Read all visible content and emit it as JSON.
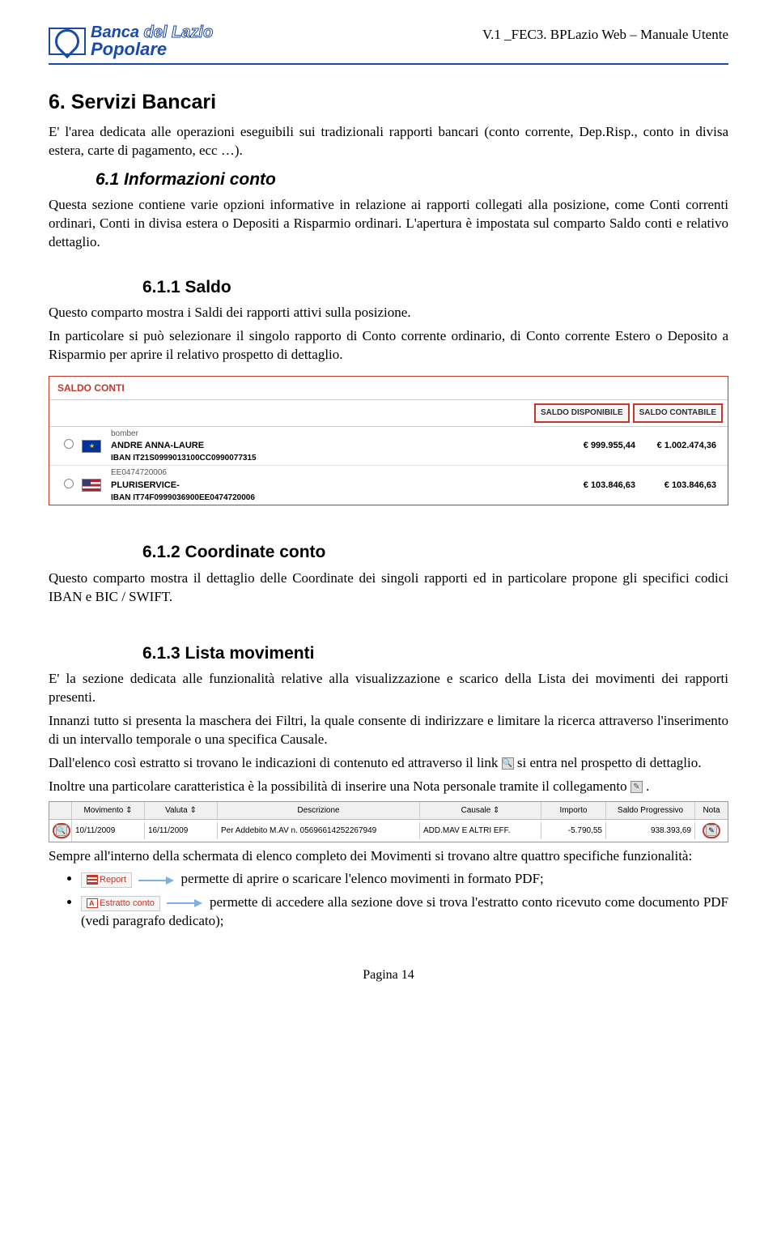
{
  "header": {
    "logo_line1a": "Banca",
    "logo_line1b": "del Lazio",
    "logo_line2": "Popolare",
    "doc_title": "V.1 _FEC3. BPLazio Web – Manuale Utente"
  },
  "h1": "6.   Servizi Bancari",
  "p1": "E' l'area dedicata alle operazioni eseguibili sui tradizionali rapporti bancari (conto corrente, Dep.Risp., conto in divisa estera, carte di pagamento, ecc …).",
  "h2_1": "6.1    Informazioni conto",
  "p2": "Questa sezione contiene varie opzioni informative in relazione ai rapporti collegati alla posizione, come Conti correnti ordinari, Conti in divisa estera o Depositi a Risparmio ordinari. L'apertura è impostata sul comparto Saldo conti e relativo dettaglio.",
  "h3_1": "6.1.1     Saldo",
  "p3": "Questo comparto mostra i Saldi dei rapporti attivi sulla posizione.",
  "p4": "In particolare si può selezionare il singolo rapporto di Conto corrente ordinario, di Conto corrente Estero o Deposito a Risparmio per aprire il relativo prospetto di dettaglio.",
  "saldo": {
    "title": "SALDO CONTI",
    "head_disp": "SALDO DISPONIBILE",
    "head_cont": "SALDO CONTABILE",
    "rows": [
      {
        "flag": "eur",
        "nick": "bomber",
        "name": "ANDRE ANNA-LAURE",
        "iban_label": "IBAN IT21S0999013100CC0990077315",
        "disp": "€ 999.955,44",
        "cont": "€ 1.002.474,36"
      },
      {
        "flag": "usa",
        "nick": "EE0474720006",
        "name": "PLURISERVICE-",
        "iban_label": "IBAN IT74F0999036900EE0474720006",
        "disp": "€ 103.846,63",
        "cont": "€ 103.846,63"
      }
    ]
  },
  "h3_2": "6.1.2     Coordinate conto",
  "p5": "Questo comparto mostra il dettaglio delle Coordinate dei singoli rapporti ed in particolare propone gli specifici codici IBAN e BIC / SWIFT.",
  "h3_3": "6.1.3     Lista movimenti",
  "p6": "E' la sezione dedicata alle funzionalità relative alla visualizzazione e scarico della Lista dei movimenti dei rapporti presenti.",
  "p7": "Innanzi tutto si presenta la maschera dei Filtri, la quale consente di indirizzare e limitare la ricerca attraverso l'inserimento di un intervallo temporale o una specifica Causale.",
  "p8a": "Dall'elenco così estratto si trovano le indicazioni di contenuto ed attraverso il link ",
  "p8b": " si entra nel prospetto di dettaglio.",
  "p9a": "Inoltre una particolare caratteristica è la possibilità di inserire una Nota personale tramite il collegamento ",
  "p9b": ".",
  "mov": {
    "head": {
      "movimento": "Movimento ⇕",
      "valuta": "Valuta ⇕",
      "descr": "Descrizione",
      "causale": "Causale ⇕",
      "importo": "Importo",
      "saldo": "Saldo Progressivo",
      "nota": "Nota"
    },
    "row": {
      "date": "10/11/2009",
      "valuta": "16/11/2009",
      "descr": "Per Addebito M.AV n. 05696614252267949",
      "causale": "ADD.MAV E ALTRI EFF.",
      "importo": "-5.790,55",
      "saldo": "938.393,69"
    }
  },
  "p10": "Sempre all'interno della schermata di elenco completo dei Movimenti si trovano altre quattro specifiche funzionalità:",
  "bullets": {
    "b1_label": "Report",
    "b1_text": "permette di aprire o scaricare l'elenco movimenti in formato PDF;",
    "b2_label": "Estratto conto",
    "b2_text": "permette di accedere alla sezione dove si trova l'estratto conto ricevuto come documento PDF (vedi paragrafo dedicato);"
  },
  "footer": "Pagina 14"
}
